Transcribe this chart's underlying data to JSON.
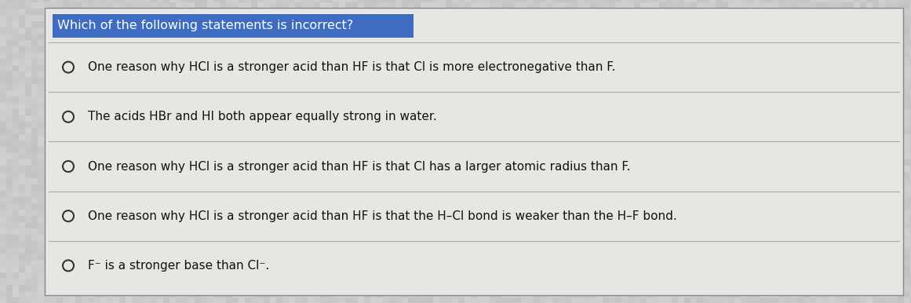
{
  "title": "Which of the following statements is incorrect?",
  "title_bg_color": "#3d6cc0",
  "title_text_color": "#ffffff",
  "title_fontsize": 11.5,
  "outer_bg_color": "#c8c8c8",
  "card_bg_color": "#e8e6e2",
  "border_color": "#888888",
  "option_text_color": "#111111",
  "option_fontsize": 11.0,
  "divider_color": "#aaaaaa",
  "circle_color": "#333333",
  "options": [
    "One reason why HCl is a stronger acid than HF is that Cl is more electronegative than F.",
    "The acids HBr and HI both appear equally strong in water.",
    "One reason why HCl is a stronger acid than HF is that Cl has a larger atomic radius than F.",
    "One reason why HCl is a stronger acid than HF is that the H–Cl bond is weaker than the H–F bond.",
    "F⁻ is a stronger base than Cl⁻."
  ]
}
